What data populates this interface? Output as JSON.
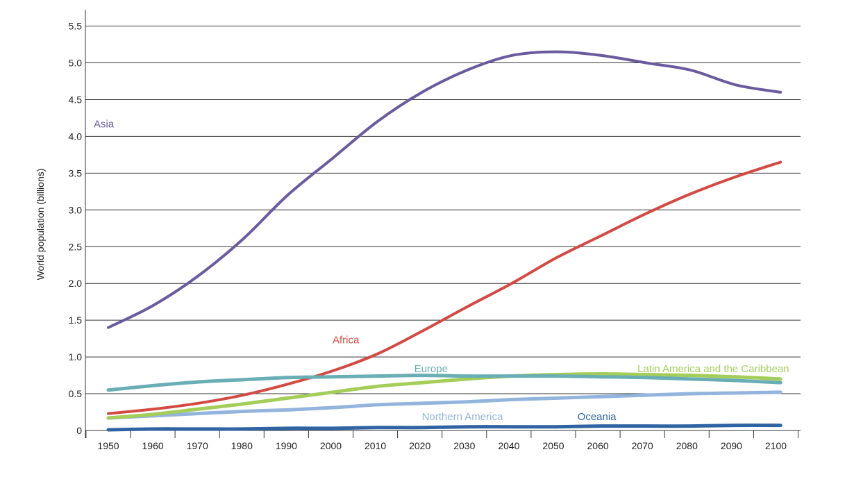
{
  "chart_data": {
    "type": "line",
    "title": "",
    "xlabel": "",
    "ylabel": "World population (billions)",
    "x_ticks": [
      "1950",
      "1960",
      "1970",
      "1980",
      "1990",
      "2000",
      "2010",
      "2020",
      "2030",
      "2040",
      "2050",
      "2060",
      "2070",
      "2080",
      "2090",
      "2100"
    ],
    "y_ticks": [
      "0",
      "0.5",
      "1.0",
      "1.5",
      "2.0",
      "2.5",
      "3.0",
      "3.5",
      "4.0",
      "4.5",
      "5.0",
      "5.5"
    ],
    "xlim": [
      1945,
      2105
    ],
    "ylim": [
      0,
      5.5
    ],
    "grid": "horizontal",
    "legend": "inline labels",
    "x": [
      1950,
      1960,
      1970,
      1980,
      1990,
      2000,
      2010,
      2020,
      2030,
      2040,
      2050,
      2060,
      2070,
      2080,
      2090,
      2100
    ],
    "series": [
      {
        "name": "Asia",
        "color": "#6b5b9e",
        "values": [
          1.4,
          1.7,
          2.1,
          2.6,
          3.2,
          3.7,
          4.2,
          4.6,
          4.9,
          5.1,
          5.15,
          5.1,
          5.0,
          4.9,
          4.7,
          4.6
        ]
      },
      {
        "name": "Africa",
        "color": "#d24a43",
        "values": [
          0.23,
          0.29,
          0.37,
          0.48,
          0.63,
          0.81,
          1.04,
          1.35,
          1.68,
          2.0,
          2.35,
          2.65,
          2.95,
          3.22,
          3.45,
          3.65
        ]
      },
      {
        "name": "Europe",
        "color": "#6aaeb5",
        "values": [
          0.55,
          0.61,
          0.66,
          0.69,
          0.72,
          0.73,
          0.74,
          0.75,
          0.74,
          0.74,
          0.74,
          0.73,
          0.72,
          0.7,
          0.68,
          0.65
        ]
      },
      {
        "name": "Latin America and the Caribbean",
        "color": "#a4cd5a",
        "values": [
          0.17,
          0.22,
          0.29,
          0.36,
          0.44,
          0.52,
          0.6,
          0.65,
          0.7,
          0.74,
          0.76,
          0.77,
          0.76,
          0.75,
          0.73,
          0.7
        ]
      },
      {
        "name": "Northern America",
        "color": "#93b4dd",
        "values": [
          0.17,
          0.2,
          0.23,
          0.26,
          0.28,
          0.31,
          0.35,
          0.37,
          0.39,
          0.42,
          0.44,
          0.46,
          0.48,
          0.5,
          0.51,
          0.52
        ]
      },
      {
        "name": "Oceania",
        "color": "#2f63a3",
        "values": [
          0.01,
          0.02,
          0.02,
          0.02,
          0.03,
          0.03,
          0.04,
          0.04,
          0.05,
          0.05,
          0.05,
          0.06,
          0.06,
          0.06,
          0.07,
          0.07
        ]
      }
    ],
    "labels": [
      {
        "series": "Asia",
        "text": "Asia",
        "x": 1949,
        "y": 4.17
      },
      {
        "series": "Africa",
        "text": "Africa",
        "x": 2003,
        "y": 1.23
      },
      {
        "series": "Europe",
        "text": "Europe",
        "x": 2022,
        "y": 0.84
      },
      {
        "series": "Latin America and the Caribbean",
        "text": "Latin America and the Caribbean",
        "x": 2085,
        "y": 0.84
      },
      {
        "series": "Northern America",
        "text": "Northern America",
        "x": 2029,
        "y": 0.19
      },
      {
        "series": "Oceania",
        "text": "Oceania",
        "x": 2059,
        "y": 0.19
      }
    ]
  }
}
